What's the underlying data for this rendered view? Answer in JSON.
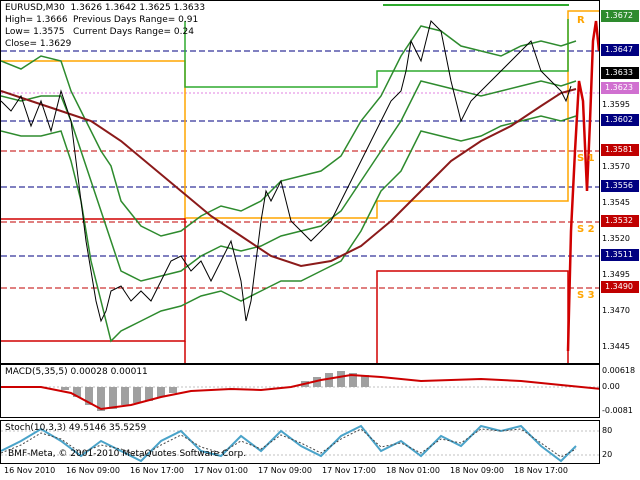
{
  "info": {
    "symbol_line": "EURUSD,M30  1.3626 1.3642 1.3625 1.3633",
    "high": "High= 1.3666",
    "low": "Low= 1.3575",
    "close": "Close= 1.3629",
    "prev_range": "Previous Days Range= 0.91",
    "curr_range": "Current Days Range= 0.24"
  },
  "macd": {
    "label": "MACD(5,35,5) 0.00028 0.00011",
    "ticks": [
      "0.00618",
      "0.00",
      "-0.0081"
    ]
  },
  "stoch": {
    "label": "Stoch(10,3,3) 49.5146 35.5259",
    "ticks": [
      "80",
      "20"
    ]
  },
  "price_axis": {
    "ticks": [
      "1.3595",
      "1.3570",
      "1.3545",
      "1.3520",
      "1.3495",
      "1.3470",
      "1.3445"
    ],
    "badges": [
      {
        "value": "1.3672",
        "color": "#2e8b2e"
      },
      {
        "value": "1.3647",
        "color": "#000080"
      },
      {
        "value": "1.3633",
        "color": "#000000"
      },
      {
        "value": "1.3623",
        "color": "#d070d0"
      },
      {
        "value": "1.3602",
        "color": "#000080"
      },
      {
        "value": "1.3581",
        "color": "#c00000"
      },
      {
        "value": "1.3556",
        "color": "#000080"
      },
      {
        "value": "1.3532",
        "color": "#c00000"
      },
      {
        "value": "1.3511",
        "color": "#000080"
      },
      {
        "value": "1.3490",
        "color": "#c00000"
      }
    ]
  },
  "time_axis": [
    "16 Nov 2010",
    "16 Nov 09:00",
    "16 Nov 17:00",
    "17 Nov 01:00",
    "17 Nov 09:00",
    "17 Nov 17:00",
    "18 Nov 01:00",
    "18 Nov 09:00",
    "18 Nov 17:00"
  ],
  "pivot_labels": {
    "r": "R",
    "s1": "S 1",
    "s2": "S 2",
    "s3": "S 3"
  },
  "copyright": "BMF-Meta, © 2001-2010 MetaQuotes Software Corp.",
  "colors": {
    "bollinger": "#2e8b2e",
    "ma": "#8b1a1a",
    "pivot_orange": "#ffa500",
    "pivot_green": "#2eaa2e",
    "pivot_red": "#d00000",
    "macd_hist": "#a0a0a0",
    "macd_signal": "#cc0000",
    "stoch_main": "#4aa3c9"
  }
}
